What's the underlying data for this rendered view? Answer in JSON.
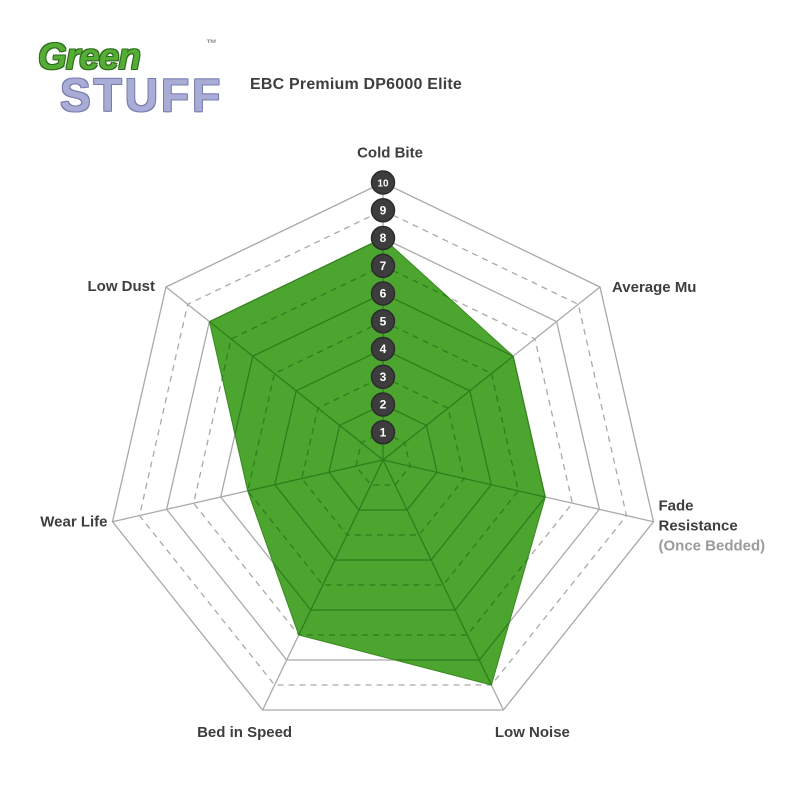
{
  "logo": {
    "word1": "Green",
    "word2": "STUFF",
    "trademark": "™"
  },
  "title": "EBC Premium DP6000 Elite",
  "chart_data": {
    "type": "radar",
    "title": "EBC Premium DP6000 Elite",
    "categories": [
      {
        "label": "Cold Bite"
      },
      {
        "label": "Average Mu"
      },
      {
        "label": "Fade Resistance",
        "lines": [
          "Fade",
          "Resistance"
        ],
        "sublabel": "(Once Bedded)"
      },
      {
        "label": "Low Noise"
      },
      {
        "label": "Bed in Speed"
      },
      {
        "label": "Wear Life"
      },
      {
        "label": "Low Dust"
      }
    ],
    "series": [
      {
        "name": "EBC Premium DP6000 Elite",
        "values": [
          8,
          6,
          6,
          9,
          7,
          5,
          8
        ]
      }
    ],
    "scale": {
      "min": 1,
      "max": 10,
      "ticks": [
        1,
        2,
        3,
        4,
        5,
        6,
        7,
        8,
        9,
        10
      ]
    },
    "grid": {
      "rings": 10,
      "even_ring_style": "solid",
      "odd_ring_style": "dashed"
    },
    "legend": "none",
    "colors": {
      "fill_green": "#4ca52f",
      "inner_grid_green": "#2f7e1b",
      "polygon_edge": "#39891f",
      "grid_gray": "#a9a9a9",
      "label_dark": "#3e3e3e",
      "label_light": "#9b9b9b",
      "tick_circle_fill": "#3d3d3d",
      "tick_circle_edge": "#2b2b2b",
      "tick_text": "#ffffff"
    }
  }
}
